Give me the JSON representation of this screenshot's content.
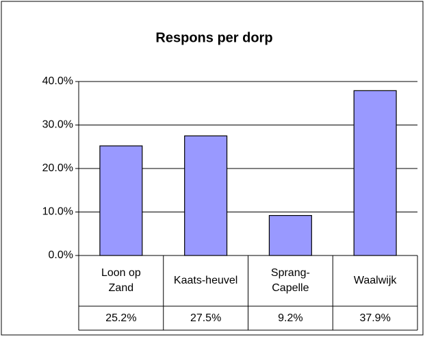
{
  "chart_data": {
    "type": "bar",
    "title": "Respons per dorp",
    "categories": [
      "Loon op Zand",
      "Kaats-heuvel",
      "Sprang-Capelle",
      "Waalwijk"
    ],
    "values": [
      25.2,
      27.5,
      9.2,
      37.9
    ],
    "value_labels": [
      "25.2%",
      "27.5%",
      "9.2%",
      "37.9%"
    ],
    "color": "#9999ff",
    "ylim": [
      0,
      40
    ],
    "yticks": [
      {
        "value": 0,
        "label": "0.0%"
      },
      {
        "value": 10,
        "label": "10.0%"
      },
      {
        "value": 20,
        "label": "20.0%"
      },
      {
        "value": 30,
        "label": "30.0%"
      },
      {
        "value": 40,
        "label": "40.0%"
      }
    ],
    "grid": true
  }
}
